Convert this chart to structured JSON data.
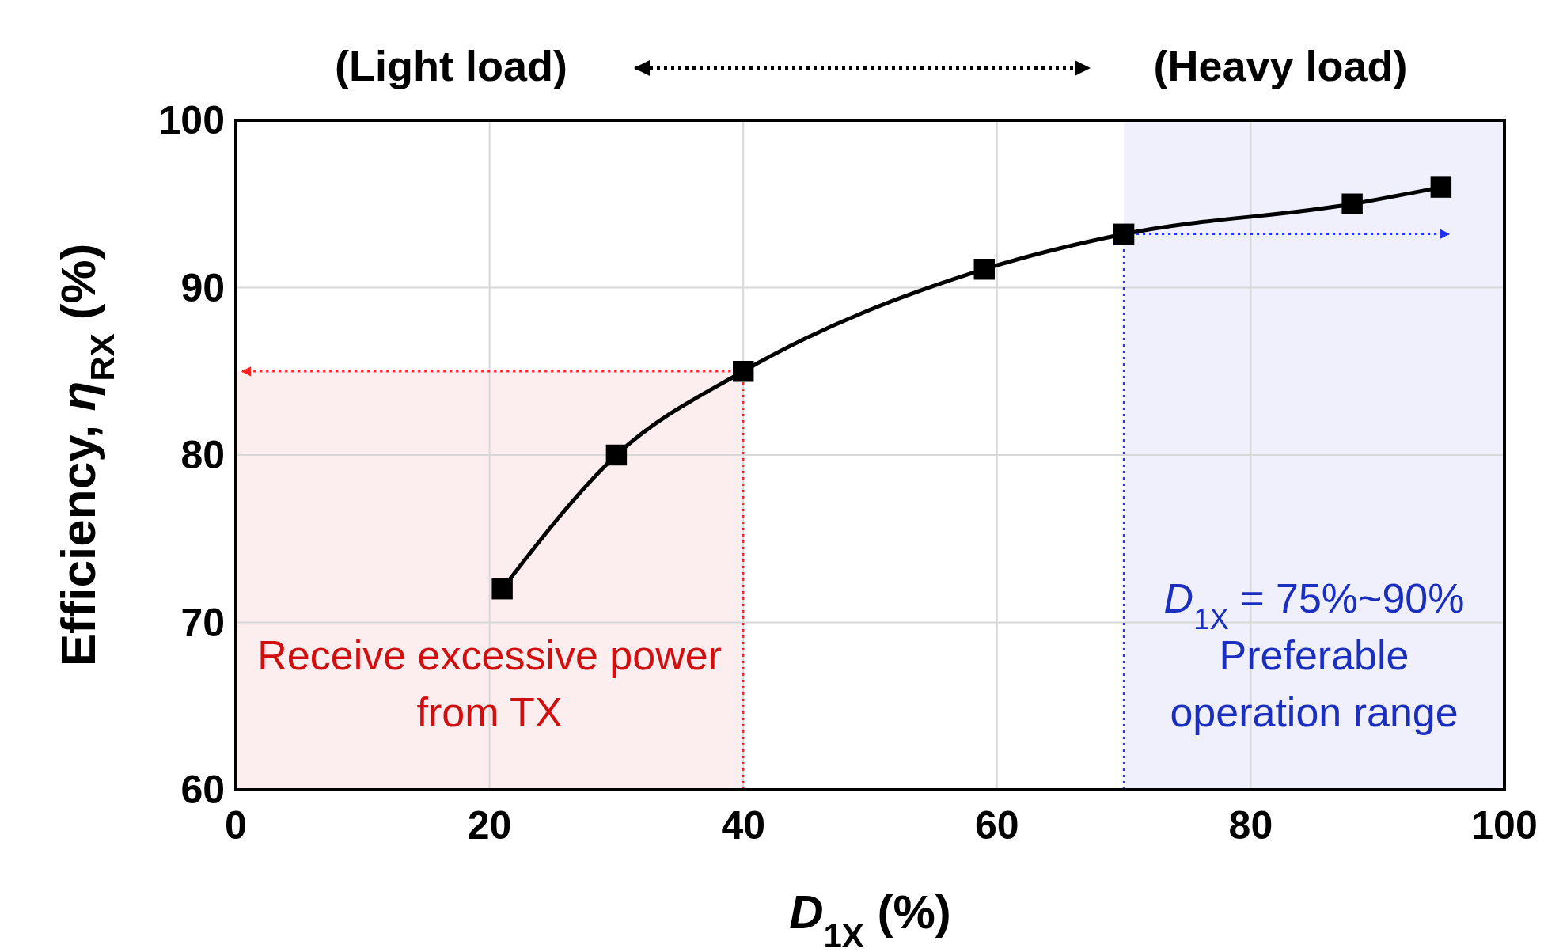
{
  "chart_data": {
    "type": "line",
    "xlabel": "D$_{1X}$ (%)",
    "ylabel": "Efficiency, η$_{RX}$ (%)",
    "x": [
      21,
      30,
      40,
      59,
      70,
      88,
      95
    ],
    "series": [
      {
        "color": "#000000",
        "values": [
          72,
          80,
          85,
          91.1,
          93.2,
          95,
          96
        ]
      }
    ],
    "xlim": [
      0,
      100
    ],
    "ylim": [
      60,
      100
    ],
    "xticks": [
      0,
      20,
      40,
      60,
      80,
      100
    ],
    "yticks": [
      60,
      70,
      80,
      90,
      100
    ],
    "grid": true,
    "marker": "square",
    "line_style": "solid",
    "bands": [
      {
        "axis": "x",
        "from": 0,
        "to": 40,
        "label": "Receive excessive power from TX",
        "color": "#d01010"
      },
      {
        "axis": "x",
        "from": 70,
        "to": 100,
        "label": "D$_{1X}$ = 75%~90% Preferable operation range",
        "color": "#1a2fc0"
      }
    ],
    "ref_lines": [
      {
        "axis": "x",
        "value": 40,
        "color": "#ff2020",
        "line_style": "dotted"
      },
      {
        "axis": "y",
        "value": 85,
        "color": "#ff2020",
        "line_style": "dotted"
      },
      {
        "axis": "x",
        "value": 70,
        "color": "#2030ff",
        "line_style": "dotted"
      },
      {
        "axis": "y",
        "value": 93.2,
        "color": "#2030ff",
        "line_style": "dotted"
      }
    ],
    "annotations": [
      "(Light load)",
      "(Heavy load)"
    ]
  }
}
